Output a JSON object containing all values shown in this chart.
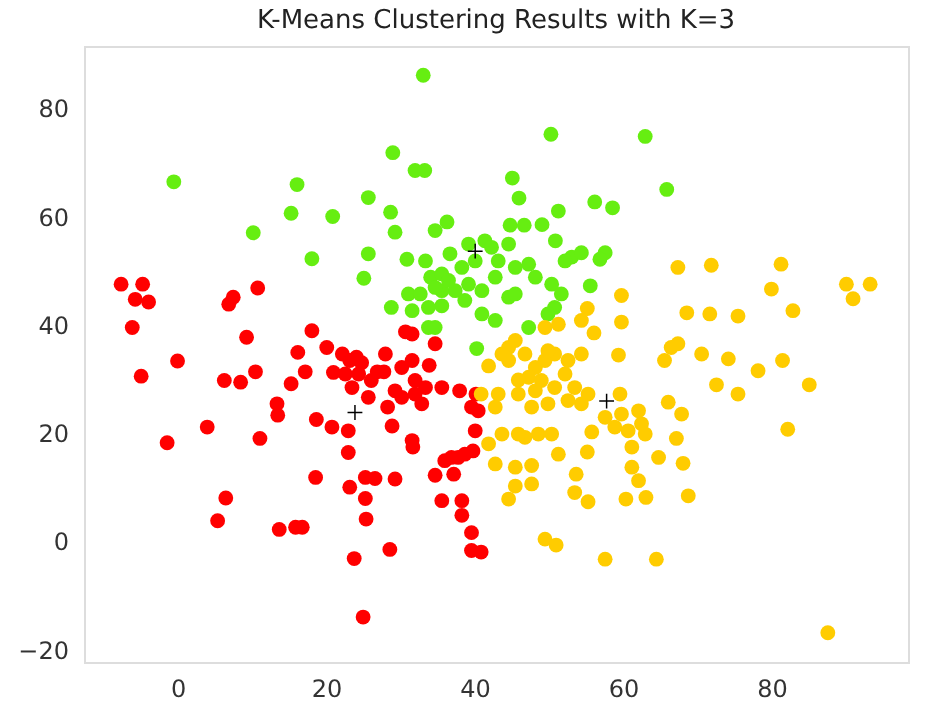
{
  "chart_data": {
    "type": "scatter",
    "title": "K-Means Clustering Results with K=3",
    "xlim": [
      -12.6,
      98.4
    ],
    "ylim": [
      -22.3,
      91.5
    ],
    "xticks": [
      0,
      20,
      40,
      60,
      80
    ],
    "yticks": [
      -20,
      0,
      20,
      40,
      60,
      80
    ],
    "grid": false,
    "legend": false,
    "series": [
      {
        "color": "#ff0000",
        "marker": "circle",
        "x": [
          -7.6,
          -4.7,
          -5.7,
          -3.9,
          -6.1,
          0,
          -4.9,
          -1.4,
          7.5,
          6.9,
          10.8,
          9.3,
          10.5,
          6.3,
          8.5,
          13.4,
          13.5,
          4.0,
          11.1,
          15.3,
          16.2,
          17.2,
          18.1,
          20.1,
          18.7,
          18.6,
          20.8,
          23,
          23,
          23.2,
          25.3,
          26.6,
          25.3,
          29.3,
          6.5,
          5.4,
          13.7,
          15.9,
          16.8,
          25.4,
          28.6,
          23.8,
          25,
          21,
          22.2,
          23.2,
          24.1,
          22.6,
          24.4,
          24.8,
          23.5,
          26.1,
          26.9,
          27.8,
          28,
          25.7,
          28.3,
          28.9,
          29.3,
          30.2,
          30.7,
          31.6,
          31.6,
          32,
          30.2,
          32,
          32.9,
          33.9,
          34.7,
          33.4,
          35.6,
          38,
          40.2,
          39.6,
          40.5,
          40.1,
          31.6,
          31.7,
          39.8,
          38.7,
          37.8,
          36.9,
          36,
          34.7,
          37.2,
          35.6,
          38.3,
          38.3,
          39.6,
          39.6,
          40.9
        ],
        "values": [
          47.5,
          47.5,
          44.7,
          44.2,
          39.5,
          33.3,
          30.5,
          18.2,
          45.1,
          43.8,
          46.8,
          37.7,
          31.3,
          29.7,
          29.4,
          25.4,
          23.3,
          21.1,
          19,
          29.1,
          34.9,
          31.3,
          38.9,
          35.8,
          22.5,
          11.8,
          21.1,
          20.4,
          16.4,
          10,
          11.8,
          11.6,
          7.9,
          11.5,
          8,
          3.8,
          2.2,
          2.6,
          2.6,
          4.1,
          -1.5,
          -3.2,
          -14,
          31.2,
          34.6,
          33.4,
          34,
          30.9,
          30.9,
          33,
          28.4,
          29.7,
          31.3,
          31.3,
          34.6,
          26.6,
          24.8,
          21.3,
          27.8,
          32.1,
          38.7,
          38.3,
          33.4,
          29.7,
          26.6,
          27.2,
          25.4,
          32.5,
          36.5,
          28.4,
          28.4,
          27.8,
          27.2,
          24.8,
          24.1,
          20.4,
          18.6,
          17.4,
          16.7,
          16.1,
          15.5,
          15.5,
          14.9,
          12.2,
          12.4,
          7.5,
          7.5,
          4.8,
          1.6,
          -1.7,
          -2
        ]
      },
      {
        "color": "#66ee11",
        "marker": "circle",
        "x": [
          33.1,
          -0.5,
          16.1,
          15.3,
          20.9,
          10.2,
          18.1,
          29.0,
          32,
          33.3,
          25.7,
          28.7,
          29.3,
          25.7,
          25.1,
          30.9,
          28.8,
          50.3,
          63,
          65.9,
          45.1,
          46,
          56.2,
          58.6,
          51.3,
          44.8,
          46.7,
          49.1,
          44.6,
          50.9,
          53.1,
          54.4,
          52.2,
          57.6,
          56.9,
          55.6,
          36.3,
          34.7,
          33.4,
          31.1,
          32.7,
          34.1,
          35.6,
          36.7,
          38.3,
          39.2,
          41.4,
          42.3,
          43.2,
          45.5,
          47.3,
          48.2,
          50.4,
          51.7,
          50.8,
          42.8,
          41,
          39.2,
          37.4,
          35.6,
          34.7,
          38.7,
          35.6,
          33.8,
          31.6,
          33.8,
          34.7,
          41,
          42.8,
          44.6,
          45.5,
          47.3,
          40.3,
          49.9,
          36.5,
          40.1
        ],
        "values": [
          86.1,
          66.4,
          65.9,
          60.6,
          60.0,
          57.0,
          52.2,
          71.8,
          68.5,
          68.5,
          63.5,
          60.8,
          57.1,
          53.1,
          48.6,
          52.1,
          43.2,
          75.2,
          74.8,
          65.0,
          67.1,
          63.4,
          62.7,
          61.6,
          61,
          58.4,
          58.4,
          58.5,
          54.9,
          55.5,
          52.5,
          53.3,
          51.8,
          53.3,
          52.1,
          47.2,
          59,
          57.4,
          51.8,
          45.7,
          45.7,
          48.8,
          49.4,
          53.1,
          50.6,
          54.9,
          55.5,
          54.3,
          51.8,
          50.6,
          51.2,
          48.8,
          47.5,
          45.7,
          43.2,
          48.8,
          46.3,
          47.5,
          46.3,
          46.3,
          46.9,
          44.5,
          43.5,
          43.2,
          42.6,
          39.5,
          39.5,
          42,
          40.8,
          45.1,
          45.7,
          39.5,
          35.6,
          42,
          48.2,
          51.8
        ]
      },
      {
        "color": "#ffcc00",
        "marker": "circle",
        "x": [
          67.4,
          71.9,
          81.3,
          80,
          82.9,
          90.1,
          93.3,
          91,
          68.6,
          71.7,
          75.5,
          59.8,
          59.8,
          66.5,
          67.4,
          65.6,
          70.6,
          74.2,
          78.2,
          81.5,
          72.6,
          75.5,
          85.1,
          82.2,
          59.4,
          59.6,
          55.2,
          56.1,
          54.4,
          51.3,
          49.5,
          54.4,
          52.6,
          52.2,
          53.5,
          55.3,
          50.8,
          49.5,
          48.2,
          46.8,
          44.6,
          43.7,
          45.5,
          41.9,
          47.3,
          49.0,
          50.8,
          48.2,
          45.9,
          43.2,
          40.9,
          42.8,
          47.7,
          49.9,
          52.6,
          54.4,
          57.6,
          59.8,
          62.1,
          62.5,
          60.7,
          63,
          58.9,
          66.1,
          67.9,
          67.2,
          68.1,
          68.8,
          64.8,
          61.2,
          61.2,
          62.1,
          63.1,
          60.4,
          55.8,
          55.2,
          53.7,
          53.5,
          55.3,
          51.3,
          50.4,
          48.6,
          46.8,
          45.9,
          43.7,
          41.9,
          42.8,
          45.5,
          47.7,
          47.7,
          45.5,
          44.6,
          49.5,
          51,
          57.6,
          64.5,
          87.6,
          45.9,
          49.9,
          44.6
        ],
        "values": [
          50.6,
          51,
          51.2,
          46.6,
          42.6,
          47.5,
          47.5,
          44.8,
          42.2,
          42,
          41.6,
          45.4,
          40.5,
          35.8,
          36.5,
          33.4,
          34.6,
          33.7,
          31.5,
          33.4,
          28.9,
          27.2,
          28.9,
          20.7,
          34.4,
          27.2,
          43,
          38.5,
          40.8,
          40.1,
          39.5,
          34.6,
          33.4,
          30.9,
          28.4,
          27.2,
          34.6,
          33.4,
          32.1,
          34.6,
          35.8,
          34.6,
          37.1,
          32.4,
          30.3,
          29.7,
          28.4,
          27.8,
          27.2,
          27.2,
          27.2,
          24.8,
          24.8,
          25.4,
          26,
          25.4,
          22.9,
          23.5,
          24.1,
          21.7,
          20.4,
          19.8,
          21.1,
          25.7,
          23.5,
          19,
          14.4,
          8.4,
          15.5,
          17.4,
          13.7,
          11.2,
          8.1,
          7.8,
          20.2,
          16.5,
          12.4,
          9,
          7.3,
          16.1,
          19.8,
          19.8,
          19.2,
          19.8,
          19.8,
          18,
          14.3,
          13.7,
          14,
          10.6,
          10.2,
          7.8,
          0.4,
          -0.7,
          -3.3,
          -3.3,
          -16.9,
          29.8,
          35.2,
          33.4
        ]
      },
      {
        "color": "#000000",
        "marker": "cross",
        "x": [
          23.9,
          40.1,
          57.8
        ],
        "values": [
          23.8,
          53.6,
          25.9
        ]
      }
    ]
  }
}
